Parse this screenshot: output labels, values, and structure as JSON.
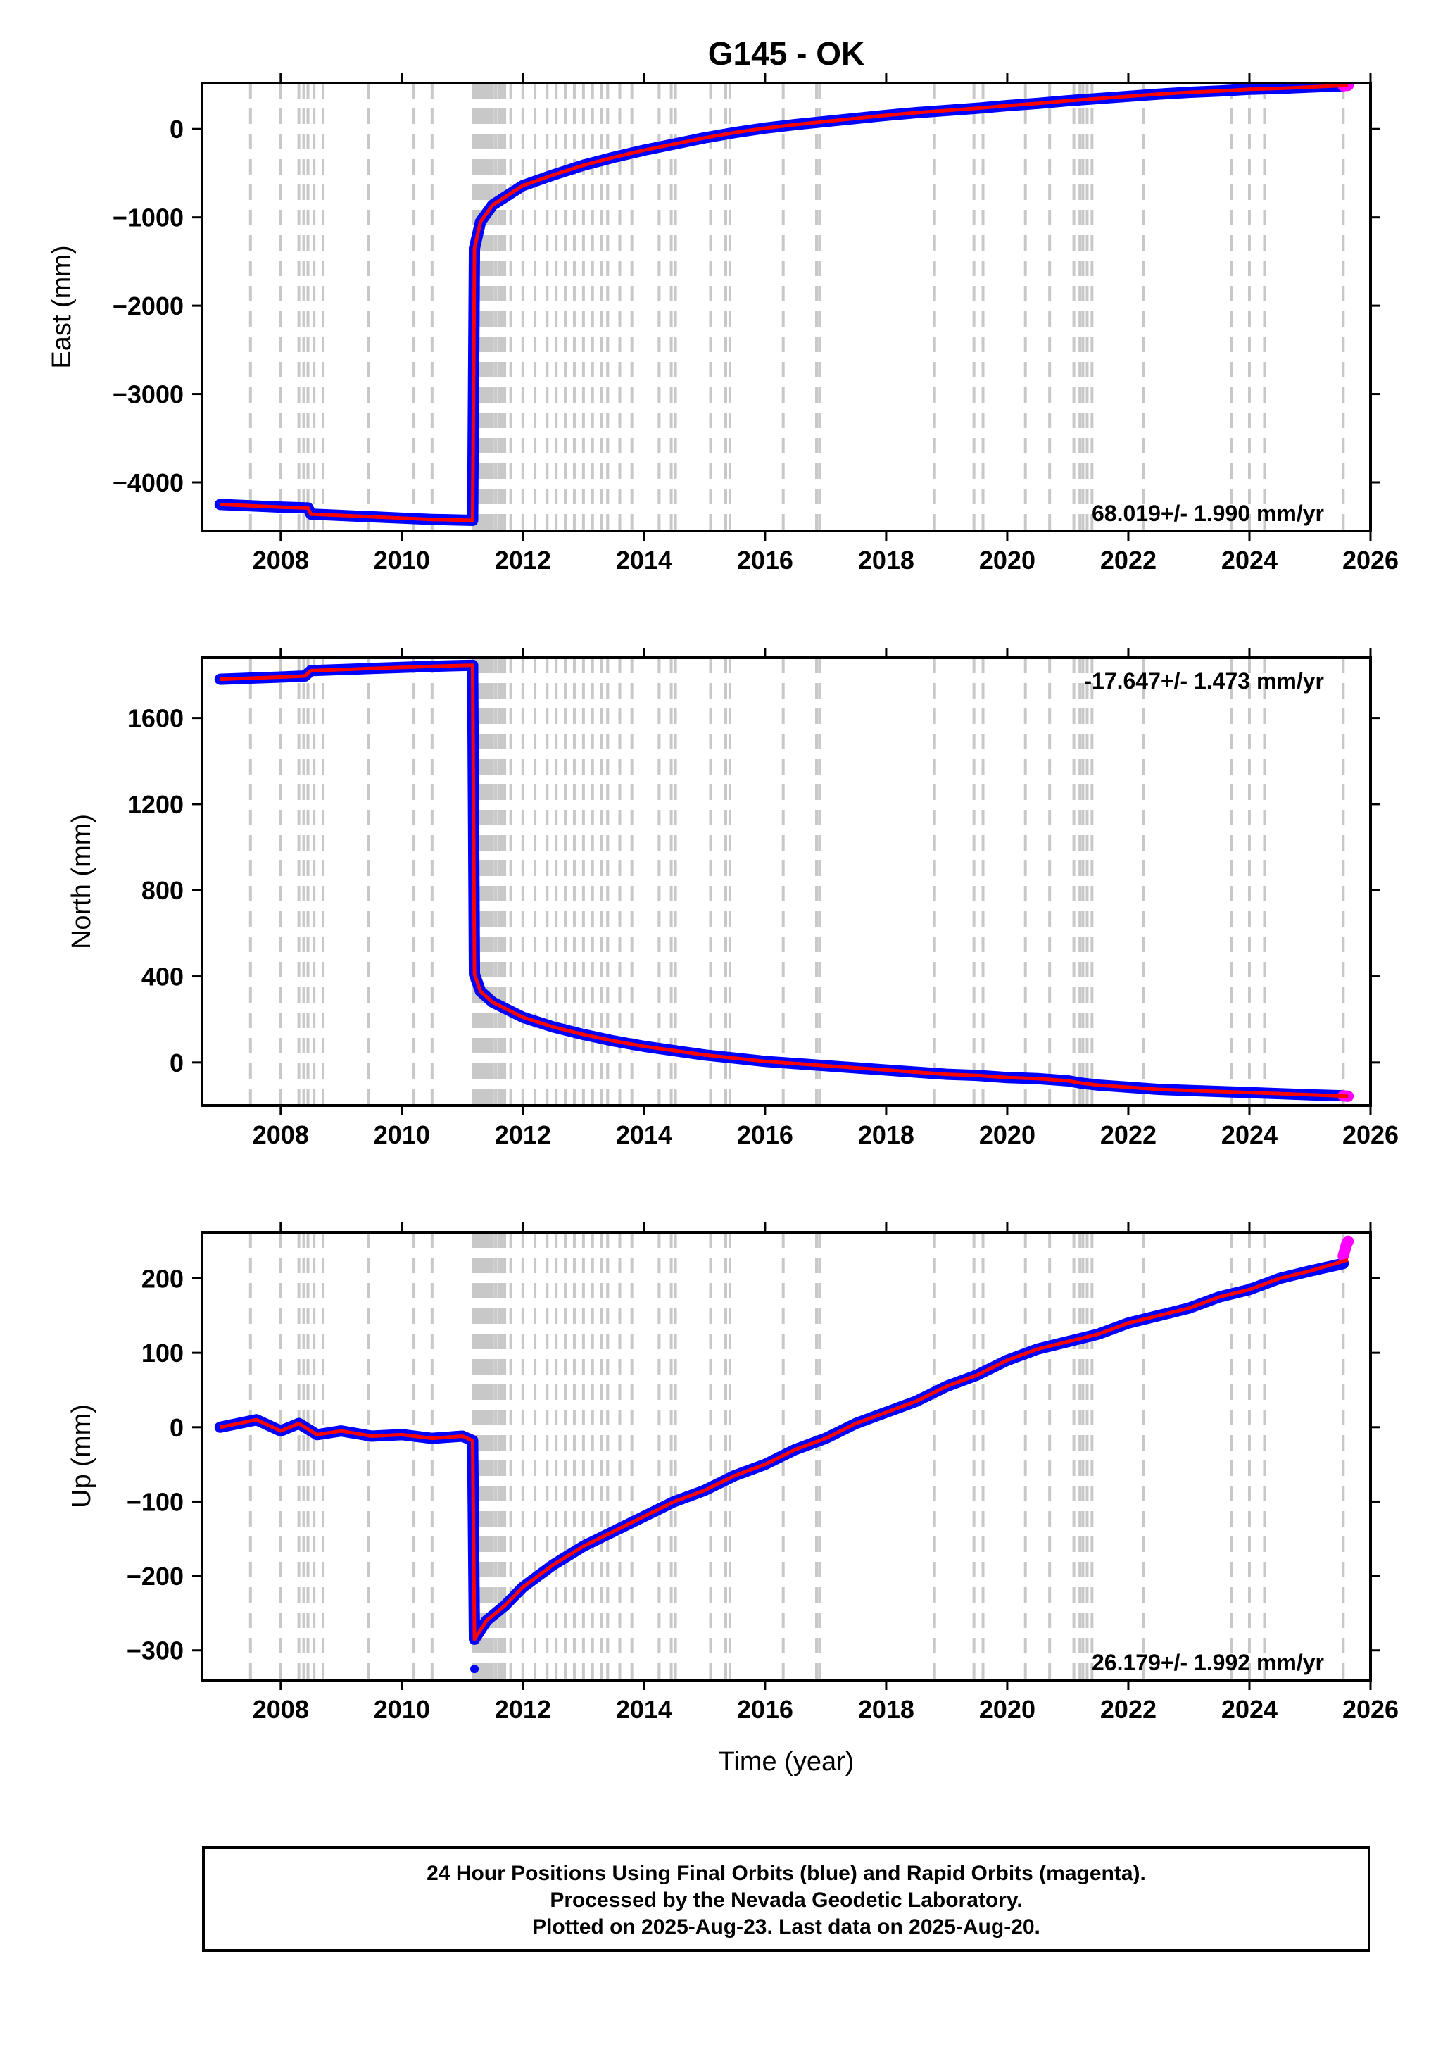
{
  "title": "G145 - OK",
  "chart_data": [
    {
      "type": "scatter",
      "ylabel": "East (mm)",
      "xlabel": "",
      "xlim": [
        2006.7,
        2026.0
      ],
      "ylim": [
        -4550,
        520
      ],
      "xticks": [
        2008,
        2010,
        2012,
        2014,
        2016,
        2018,
        2020,
        2022,
        2024,
        2026
      ],
      "yticks": [
        -4000,
        -3000,
        -2000,
        -1000,
        0
      ],
      "yticklabels": [
        "−4000",
        "−3000",
        "−2000",
        "−1000",
        "0"
      ],
      "rate_label": "68.019+/- 1.990 mm/yr",
      "rate_position": "bottom-right",
      "series": [
        {
          "color": "#0000ff",
          "x": [
            2007.0,
            2007.5,
            2008.0,
            2008.45,
            2008.5,
            2009.0,
            2009.5,
            2010.0,
            2010.5,
            2011.17,
            2011.2,
            2011.3,
            2011.5,
            2012.0,
            2012.5,
            2013.0,
            2013.5,
            2014.0,
            2014.5,
            2015.0,
            2015.5,
            2016.0,
            2016.5,
            2017.0,
            2017.5,
            2018.0,
            2018.5,
            2019.0,
            2019.5,
            2020.0,
            2020.5,
            2021.0,
            2021.5,
            2022.0,
            2022.5,
            2023.0,
            2023.5,
            2024.0,
            2024.5,
            2025.0,
            2025.55
          ],
          "y": [
            -4250,
            -4265,
            -4280,
            -4290,
            -4360,
            -4375,
            -4390,
            -4405,
            -4420,
            -4430,
            -1350,
            -1050,
            -860,
            -640,
            -520,
            -410,
            -320,
            -240,
            -170,
            -100,
            -40,
            10,
            50,
            85,
            120,
            155,
            185,
            210,
            235,
            265,
            290,
            320,
            345,
            370,
            395,
            415,
            430,
            450,
            460,
            475,
            490
          ]
        },
        {
          "color": "#ff00ff",
          "x": [
            2025.55,
            2025.63
          ],
          "y": [
            490,
            495
          ]
        }
      ],
      "model_line": {
        "color": "#ff0000",
        "x": [
          2007.0,
          2007.5,
          2008.0,
          2008.45,
          2008.5,
          2009.0,
          2009.5,
          2010.0,
          2010.5,
          2011.17,
          2011.2,
          2011.3,
          2011.5,
          2012.0,
          2012.5,
          2013.0,
          2013.5,
          2014.0,
          2014.5,
          2015.0,
          2015.5,
          2016.0,
          2016.5,
          2017.0,
          2017.5,
          2018.0,
          2018.5,
          2019.0,
          2019.5,
          2020.0,
          2020.5,
          2021.0,
          2021.5,
          2022.0,
          2022.5,
          2023.0,
          2023.5,
          2024.0,
          2024.5,
          2025.0,
          2025.63
        ],
        "y": [
          -4250,
          -4265,
          -4280,
          -4290,
          -4360,
          -4375,
          -4390,
          -4405,
          -4420,
          -4430,
          -1350,
          -1050,
          -860,
          -640,
          -520,
          -410,
          -320,
          -240,
          -170,
          -100,
          -40,
          10,
          50,
          85,
          120,
          155,
          185,
          210,
          235,
          265,
          290,
          320,
          345,
          370,
          395,
          415,
          430,
          450,
          460,
          475,
          495
        ]
      }
    },
    {
      "type": "scatter",
      "ylabel": "North (mm)",
      "xlabel": "",
      "xlim": [
        2006.7,
        2026.0
      ],
      "ylim": [
        -200,
        1880
      ],
      "xticks": [
        2008,
        2010,
        2012,
        2014,
        2016,
        2018,
        2020,
        2022,
        2024,
        2026
      ],
      "yticks": [
        0,
        400,
        800,
        1200,
        1600
      ],
      "yticklabels": [
        "0",
        "400",
        "800",
        "1200",
        "1600"
      ],
      "rate_label": "-17.647+/- 1.473 mm/yr",
      "rate_position": "top-right",
      "series": [
        {
          "color": "#0000ff",
          "x": [
            2007.0,
            2007.5,
            2008.0,
            2008.4,
            2008.5,
            2009.0,
            2009.5,
            2010.0,
            2010.5,
            2011.17,
            2011.2,
            2011.3,
            2011.5,
            2012.0,
            2012.5,
            2013.0,
            2013.5,
            2014.0,
            2014.5,
            2015.0,
            2015.5,
            2016.0,
            2016.5,
            2017.0,
            2017.5,
            2018.0,
            2018.5,
            2019.0,
            2019.5,
            2020.0,
            2020.5,
            2021.0,
            2021.2,
            2021.5,
            2022.0,
            2022.5,
            2023.0,
            2023.5,
            2024.0,
            2024.5,
            2025.0,
            2025.55
          ],
          "y": [
            1780,
            1785,
            1790,
            1795,
            1820,
            1825,
            1830,
            1835,
            1840,
            1845,
            410,
            330,
            280,
            210,
            165,
            130,
            100,
            75,
            55,
            35,
            20,
            5,
            -5,
            -15,
            -25,
            -35,
            -45,
            -55,
            -60,
            -70,
            -75,
            -85,
            -95,
            -105,
            -115,
            -125,
            -130,
            -135,
            -140,
            -145,
            -150,
            -155
          ]
        },
        {
          "color": "#ff00ff",
          "x": [
            2025.55,
            2025.63
          ],
          "y": [
            -155,
            -157
          ]
        }
      ],
      "model_line": {
        "color": "#ff0000",
        "x": [
          2007.0,
          2007.5,
          2008.0,
          2008.4,
          2008.5,
          2009.0,
          2009.5,
          2010.0,
          2010.5,
          2011.17,
          2011.2,
          2011.3,
          2011.5,
          2012.0,
          2012.5,
          2013.0,
          2013.5,
          2014.0,
          2014.5,
          2015.0,
          2015.5,
          2016.0,
          2016.5,
          2017.0,
          2017.5,
          2018.0,
          2018.5,
          2019.0,
          2019.5,
          2020.0,
          2020.5,
          2021.0,
          2021.2,
          2021.5,
          2022.0,
          2022.5,
          2023.0,
          2023.5,
          2024.0,
          2024.5,
          2025.0,
          2025.63
        ],
        "y": [
          1780,
          1785,
          1790,
          1795,
          1820,
          1825,
          1830,
          1835,
          1840,
          1845,
          410,
          330,
          280,
          210,
          165,
          130,
          100,
          75,
          55,
          35,
          20,
          5,
          -5,
          -15,
          -25,
          -35,
          -45,
          -55,
          -60,
          -70,
          -75,
          -85,
          -95,
          -105,
          -115,
          -125,
          -130,
          -135,
          -140,
          -145,
          -150,
          -157
        ]
      }
    },
    {
      "type": "scatter",
      "ylabel": "Up (mm)",
      "xlabel": "Time (year)",
      "xlim": [
        2006.7,
        2026.0
      ],
      "ylim": [
        -340,
        262
      ],
      "xticks": [
        2008,
        2010,
        2012,
        2014,
        2016,
        2018,
        2020,
        2022,
        2024,
        2026
      ],
      "yticks": [
        -300,
        -200,
        -100,
        0,
        100,
        200
      ],
      "yticklabels": [
        "−300",
        "−200",
        "−100",
        "0",
        "100",
        "200"
      ],
      "rate_label": "26.179+/- 1.992 mm/yr",
      "rate_position": "bottom-right",
      "series": [
        {
          "color": "#0000ff",
          "x": [
            2007.0,
            2007.3,
            2007.6,
            2008.0,
            2008.3,
            2008.6,
            2009.0,
            2009.5,
            2010.0,
            2010.5,
            2011.0,
            2011.17,
            2011.2,
            2011.4,
            2011.7,
            2012.0,
            2012.5,
            2013.0,
            2013.5,
            2014.0,
            2014.5,
            2015.0,
            2015.5,
            2016.0,
            2016.5,
            2017.0,
            2017.5,
            2018.0,
            2018.5,
            2019.0,
            2019.5,
            2020.0,
            2020.5,
            2021.0,
            2021.5,
            2022.0,
            2022.5,
            2023.0,
            2023.5,
            2024.0,
            2024.5,
            2025.0,
            2025.55
          ],
          "y": [
            0,
            5,
            10,
            -5,
            5,
            -10,
            -5,
            -12,
            -10,
            -15,
            -12,
            -18,
            -285,
            -260,
            -240,
            -215,
            -185,
            -160,
            -140,
            -120,
            -100,
            -85,
            -65,
            -50,
            -30,
            -15,
            5,
            20,
            35,
            55,
            70,
            90,
            105,
            115,
            125,
            140,
            150,
            160,
            175,
            185,
            200,
            210,
            220
          ]
        },
        {
          "color": "#ff00ff",
          "x": [
            2025.55,
            2025.6,
            2025.63
          ],
          "y": [
            230,
            245,
            250
          ]
        }
      ],
      "outliers": {
        "color": "#0000ff",
        "x": [
          2011.2
        ],
        "y": [
          -325
        ]
      },
      "model_line": {
        "color": "#ff0000",
        "x": [
          2007.0,
          2007.3,
          2007.6,
          2008.0,
          2008.3,
          2008.6,
          2009.0,
          2009.5,
          2010.0,
          2010.5,
          2011.0,
          2011.17,
          2011.2,
          2011.4,
          2011.7,
          2012.0,
          2012.5,
          2013.0,
          2013.5,
          2014.0,
          2014.5,
          2015.0,
          2015.5,
          2016.0,
          2016.5,
          2017.0,
          2017.5,
          2018.0,
          2018.5,
          2019.0,
          2019.5,
          2020.0,
          2020.5,
          2021.0,
          2021.5,
          2022.0,
          2022.5,
          2023.0,
          2023.5,
          2024.0,
          2024.5,
          2025.0,
          2025.63
        ],
        "y": [
          0,
          5,
          10,
          -5,
          5,
          -10,
          -5,
          -12,
          -10,
          -15,
          -12,
          -18,
          -285,
          -260,
          -240,
          -215,
          -185,
          -160,
          -140,
          -120,
          -100,
          -85,
          -65,
          -50,
          -30,
          -15,
          5,
          20,
          35,
          55,
          70,
          90,
          105,
          115,
          125,
          140,
          150,
          160,
          175,
          185,
          200,
          210,
          225
        ]
      }
    }
  ],
  "event_lines": {
    "color": "#c8c8c8",
    "x": [
      2007.5,
      2008.0,
      2008.3,
      2008.38,
      2008.45,
      2008.55,
      2008.7,
      2009.45,
      2010.2,
      2010.5,
      2011.18,
      2011.22,
      2011.26,
      2011.3,
      2011.34,
      2011.38,
      2011.42,
      2011.46,
      2011.5,
      2011.55,
      2011.6,
      2011.65,
      2011.7,
      2011.8,
      2012.0,
      2012.2,
      2012.4,
      2012.55,
      2012.7,
      2012.85,
      2013.0,
      2013.15,
      2013.3,
      2013.4,
      2013.6,
      2013.8,
      2014.25,
      2014.45,
      2014.52,
      2015.1,
      2015.35,
      2015.42,
      2016.3,
      2016.85,
      2016.9,
      2018.8,
      2019.45,
      2019.6,
      2020.3,
      2020.7,
      2021.1,
      2021.2,
      2021.25,
      2021.32,
      2021.4,
      2022.25,
      2023.7,
      2024.0,
      2024.25,
      2025.55
    ]
  },
  "footer": {
    "line1": "24 Hour Positions Using Final Orbits (blue) and Rapid Orbits (magenta).",
    "line2": "Processed by the Nevada Geodetic Laboratory.",
    "line3": "Plotted on 2025-Aug-23. Last data on 2025-Aug-20."
  }
}
